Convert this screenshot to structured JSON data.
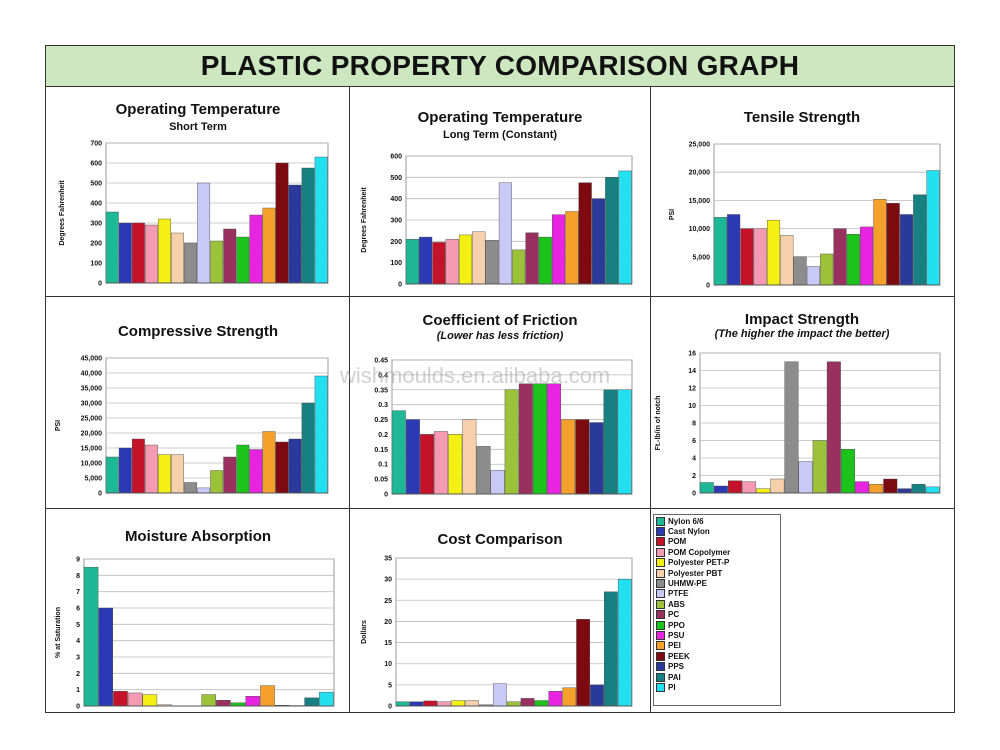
{
  "title": "PLASTIC PROPERTY COMPARISON GRAPH",
  "watermark": "wishmoulds.en.alibaba.com",
  "materials": [
    {
      "name": "Nylon 6/6",
      "color": "#1fb896"
    },
    {
      "name": "Cast Nylon",
      "color": "#2b39b5"
    },
    {
      "name": "POM",
      "color": "#c4122a"
    },
    {
      "name": "POM Copolymer",
      "color": "#f49bb3"
    },
    {
      "name": "Polyester PET-P",
      "color": "#f5f014"
    },
    {
      "name": "Polyester PBT",
      "color": "#f6d0ab"
    },
    {
      "name": "UHMW-PE",
      "color": "#8c8c8c"
    },
    {
      "name": "PTFE",
      "color": "#c9c9f5"
    },
    {
      "name": "ABS",
      "color": "#9cc23a"
    },
    {
      "name": "PC",
      "color": "#9a3060"
    },
    {
      "name": "PPO",
      "color": "#1bc31b"
    },
    {
      "name": "PSU",
      "color": "#e824e0"
    },
    {
      "name": "PEI",
      "color": "#f5a02a"
    },
    {
      "name": "PEEK",
      "color": "#7d0a10"
    },
    {
      "name": "PPS",
      "color": "#2a3a9a"
    },
    {
      "name": "PAI",
      "color": "#178080"
    },
    {
      "name": "PI",
      "color": "#22e0f0"
    }
  ],
  "chart_data": [
    {
      "type": "bar",
      "title": "Operating Temperature",
      "subtitle": "Short Term",
      "subtitle_style": "normal",
      "ylabel": "Degrees Fahrenheit",
      "ylim": [
        0,
        700
      ],
      "yticks": [
        "0",
        "100",
        "200",
        "300",
        "400",
        "500",
        "600",
        "700"
      ],
      "values": [
        355,
        300,
        300,
        290,
        320,
        250,
        200,
        500,
        210,
        270,
        230,
        340,
        375,
        600,
        490,
        575,
        630
      ]
    },
    {
      "type": "bar",
      "title": "Operating Temperature",
      "subtitle": "Long Term (Constant)",
      "subtitle_style": "normal",
      "ylabel": "Degrees Fahrenheit",
      "ylim": [
        0,
        600
      ],
      "yticks": [
        "0",
        "100",
        "200",
        "300",
        "400",
        "500",
        "600"
      ],
      "values": [
        210,
        220,
        195,
        210,
        230,
        245,
        205,
        475,
        160,
        240,
        220,
        325,
        340,
        475,
        400,
        500,
        530
      ]
    },
    {
      "type": "bar",
      "title": "Tensile Strength",
      "subtitle": "",
      "subtitle_style": "normal",
      "ylabel": "PSI",
      "ylim": [
        0,
        25000
      ],
      "yticks": [
        "0",
        "5,000",
        "10,000",
        "15,000",
        "20,000",
        "25,000"
      ],
      "values": [
        12000,
        12500,
        10000,
        10000,
        11500,
        8800,
        5000,
        3300,
        5500,
        10000,
        9000,
        10300,
        15200,
        14500,
        12500,
        16000,
        20300
      ]
    },
    {
      "type": "bar",
      "title": "Compressive Strength",
      "subtitle": "",
      "subtitle_style": "normal",
      "ylabel": "PSI",
      "ylim": [
        0,
        45000
      ],
      "yticks": [
        "0",
        "5,000",
        "10,000",
        "15,000",
        "20,000",
        "25,000",
        "30,000",
        "35,000",
        "40,000",
        "45,000"
      ],
      "values": [
        12000,
        15000,
        18000,
        16000,
        12800,
        12800,
        3500,
        1700,
        7500,
        12000,
        16000,
        14500,
        20500,
        17000,
        18000,
        30000,
        39000
      ]
    },
    {
      "type": "bar",
      "title": "Coefficient of Friction",
      "subtitle": "(Lower has less friction)",
      "subtitle_style": "italic",
      "ylabel": "",
      "ylim": [
        0,
        0.45
      ],
      "yticks": [
        "0",
        "0.05",
        "0.1",
        "0.15",
        "0.2",
        "0.25",
        "0.3",
        "0.35",
        "0.4",
        "0.45"
      ],
      "values": [
        0.28,
        0.25,
        0.2,
        0.21,
        0.2,
        0.25,
        0.16,
        0.08,
        0.35,
        0.37,
        0.37,
        0.37,
        0.25,
        0.25,
        0.24,
        0.35,
        0.35
      ]
    },
    {
      "type": "bar",
      "title": "Impact Strength",
      "subtitle": "(The higher the impact the better)",
      "subtitle_style": "italic",
      "ylabel": "Ft.-lb/in of notch",
      "ylim": [
        0,
        16
      ],
      "yticks": [
        "0",
        "2",
        "4",
        "6",
        "8",
        "10",
        "12",
        "14",
        "16"
      ],
      "values": [
        1.2,
        0.8,
        1.4,
        1.3,
        0.5,
        1.6,
        15,
        3.6,
        6,
        15,
        5,
        1.3,
        1,
        1.6,
        0.5,
        1,
        0.7
      ]
    },
    {
      "type": "bar",
      "title": "Moisture Absorption",
      "subtitle": "",
      "subtitle_style": "normal",
      "ylabel": "% at Saturation",
      "ylim": [
        0,
        9
      ],
      "yticks": [
        "0",
        "1",
        "2",
        "3",
        "4",
        "5",
        "6",
        "7",
        "8",
        "9"
      ],
      "values": [
        8.5,
        6,
        0.9,
        0.8,
        0.7,
        0.08,
        0.01,
        0.01,
        0.7,
        0.35,
        0.2,
        0.6,
        1.25,
        0.05,
        0.03,
        0.5,
        0.85
      ]
    },
    {
      "type": "bar",
      "title": "Cost Comparison",
      "subtitle": "",
      "subtitle_style": "normal",
      "ylabel": "Dollars",
      "ylim": [
        0,
        35
      ],
      "yticks": [
        "0",
        "5",
        "10",
        "15",
        "20",
        "25",
        "30",
        "35"
      ],
      "values": [
        1,
        1,
        1.2,
        1,
        1.3,
        1.3,
        0.3,
        5.3,
        1,
        1.8,
        1.3,
        3.5,
        4.3,
        20.5,
        5,
        27,
        30
      ]
    }
  ]
}
